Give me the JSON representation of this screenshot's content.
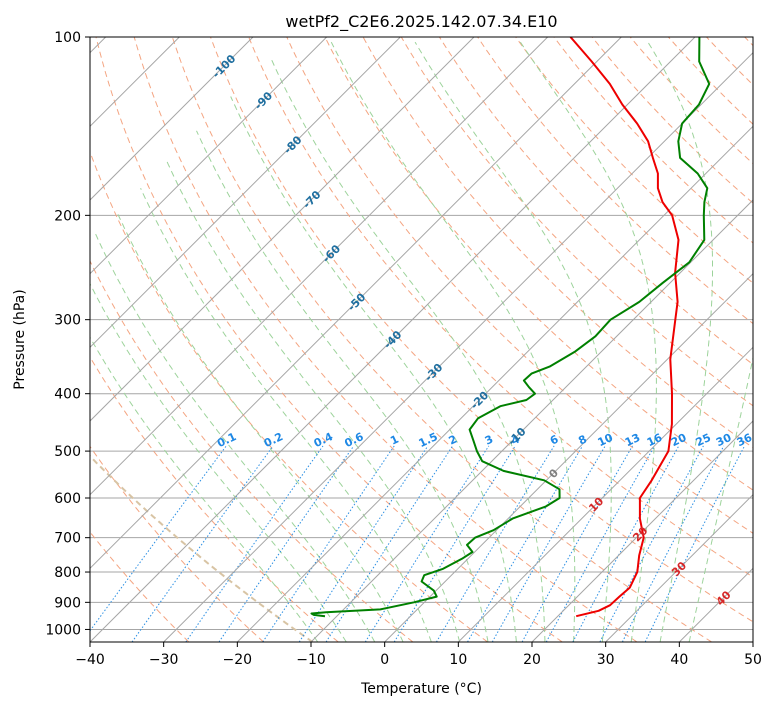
{
  "chart_data": {
    "type": "line",
    "title": "wetPf2_C2E6.2025.142.07.34.E10",
    "xlabel": "Temperature (°C)",
    "ylabel": "Pressure (hPa)",
    "x_range": [
      -40,
      50
    ],
    "p_range": [
      1050,
      100
    ],
    "log_pressure_axis": true,
    "skew": "skew-T log-P diagram",
    "grid": true,
    "x_ticks": [
      -40,
      -30,
      -20,
      -10,
      0,
      10,
      20,
      30,
      40,
      50
    ],
    "x_tick_labels": [
      "−40",
      "−30",
      "−20",
      "−10",
      "0",
      "10",
      "20",
      "30",
      "40",
      "50"
    ],
    "p_ticks": [
      100,
      200,
      300,
      400,
      500,
      600,
      700,
      800,
      900,
      1000
    ],
    "p_tick_labels": [
      "100",
      "200",
      "300",
      "400",
      "500",
      "600",
      "700",
      "800",
      "900",
      "1000"
    ],
    "isotherm_labels": {
      "color": "#1f6fa0",
      "items": [
        {
          "text": "-100",
          "p": 112
        },
        {
          "text": "-90",
          "p": 128
        },
        {
          "text": "-80",
          "p": 152
        },
        {
          "text": "-70",
          "p": 188
        },
        {
          "text": "-60",
          "p": 232
        },
        {
          "text": "-50",
          "p": 280
        },
        {
          "text": "-40",
          "p": 324
        },
        {
          "text": "-30",
          "p": 368
        },
        {
          "text": "-20",
          "p": 410
        },
        {
          "text": "-10",
          "p": 472
        },
        {
          "text": "0",
          "p": 545,
          "color": "#7f7f7f"
        },
        {
          "text": "10",
          "p": 615,
          "color": "#d62728"
        },
        {
          "text": "20",
          "p": 690,
          "color": "#d62728"
        },
        {
          "text": "30",
          "p": 790,
          "color": "#d62728"
        },
        {
          "text": "40",
          "p": 885,
          "color": "#d62728"
        }
      ]
    },
    "mixing_ratio_labels": {
      "color": "#1e88e5",
      "p": 485,
      "items": [
        "0.1",
        "0.2",
        "0.4",
        "0.6",
        "1",
        "1.5",
        "2",
        "3",
        "4",
        "6",
        "8",
        "10",
        "13",
        "16",
        "20",
        "25",
        "30",
        "36"
      ]
    },
    "series": [
      {
        "name": "",
        "color": "#ee0000",
        "points": [
          {
            "p": 950,
            "t": 22.5
          },
          {
            "p": 930,
            "t": 24.8
          },
          {
            "p": 910,
            "t": 25.6
          },
          {
            "p": 880,
            "t": 25.7
          },
          {
            "p": 850,
            "t": 25.9
          },
          {
            "p": 800,
            "t": 24.8
          },
          {
            "p": 750,
            "t": 22.8
          },
          {
            "p": 700,
            "t": 21.0
          },
          {
            "p": 650,
            "t": 17.9
          },
          {
            "p": 600,
            "t": 15.1
          },
          {
            "p": 560,
            "t": 14.3
          },
          {
            "p": 500,
            "t": 12.6
          },
          {
            "p": 450,
            "t": 9.4
          },
          {
            "p": 400,
            "t": 5.3
          },
          {
            "p": 350,
            "t": 0.4
          },
          {
            "p": 300,
            "t": -4.3
          },
          {
            "p": 280,
            "t": -6.4
          },
          {
            "p": 250,
            "t": -10.7
          },
          {
            "p": 220,
            "t": -14.7
          },
          {
            "p": 200,
            "t": -18.9
          },
          {
            "p": 190,
            "t": -22.0
          },
          {
            "p": 180,
            "t": -24.5
          },
          {
            "p": 170,
            "t": -26.5
          },
          {
            "p": 160,
            "t": -29.3
          },
          {
            "p": 150,
            "t": -32.2
          },
          {
            "p": 140,
            "t": -36.1
          },
          {
            "p": 130,
            "t": -40.7
          },
          {
            "p": 120,
            "t": -45.2
          },
          {
            "p": 110,
            "t": -50.7
          },
          {
            "p": 100,
            "t": -56.9
          }
        ]
      },
      {
        "name": "",
        "color": "#008000",
        "points": [
          {
            "p": 950,
            "t": -11.6
          },
          {
            "p": 945,
            "t": -13.3
          },
          {
            "p": 940,
            "t": -13.8
          },
          {
            "p": 935,
            "t": -12.0
          },
          {
            "p": 925,
            "t": -5.0
          },
          {
            "p": 900,
            "t": -1.4
          },
          {
            "p": 880,
            "t": 0.9
          },
          {
            "p": 860,
            "t": -0.3
          },
          {
            "p": 830,
            "t": -3.2
          },
          {
            "p": 810,
            "t": -3.7
          },
          {
            "p": 790,
            "t": -2.0
          },
          {
            "p": 760,
            "t": -0.8
          },
          {
            "p": 740,
            "t": -0.3
          },
          {
            "p": 720,
            "t": -2.0
          },
          {
            "p": 700,
            "t": -1.9
          },
          {
            "p": 680,
            "t": -0.4
          },
          {
            "p": 650,
            "t": 0.6
          },
          {
            "p": 620,
            "t": 3.5
          },
          {
            "p": 600,
            "t": 4.2
          },
          {
            "p": 580,
            "t": 3.0
          },
          {
            "p": 560,
            "t": -0.3
          },
          {
            "p": 540,
            "t": -7.1
          },
          {
            "p": 520,
            "t": -11.3
          },
          {
            "p": 500,
            "t": -13.4
          },
          {
            "p": 480,
            "t": -15.3
          },
          {
            "p": 460,
            "t": -17.3
          },
          {
            "p": 440,
            "t": -17.7
          },
          {
            "p": 420,
            "t": -16.3
          },
          {
            "p": 410,
            "t": -13.6
          },
          {
            "p": 400,
            "t": -13.3
          },
          {
            "p": 390,
            "t": -15.0
          },
          {
            "p": 380,
            "t": -16.6
          },
          {
            "p": 370,
            "t": -16.5
          },
          {
            "p": 360,
            "t": -15.0
          },
          {
            "p": 340,
            "t": -13.6
          },
          {
            "p": 320,
            "t": -12.9
          },
          {
            "p": 300,
            "t": -13.1
          },
          {
            "p": 280,
            "t": -11.6
          },
          {
            "p": 260,
            "t": -11.0
          },
          {
            "p": 240,
            "t": -10.2
          },
          {
            "p": 220,
            "t": -11.2
          },
          {
            "p": 200,
            "t": -14.6
          },
          {
            "p": 190,
            "t": -16.3
          },
          {
            "p": 180,
            "t": -17.8
          },
          {
            "p": 170,
            "t": -21.1
          },
          {
            "p": 160,
            "t": -25.6
          },
          {
            "p": 150,
            "t": -28.1
          },
          {
            "p": 140,
            "t": -30.0
          },
          {
            "p": 130,
            "t": -30.3
          },
          {
            "p": 120,
            "t": -31.7
          },
          {
            "p": 110,
            "t": -36.1
          },
          {
            "p": 100,
            "t": -39.4
          }
        ]
      }
    ],
    "background_line_colors": {
      "isotherm": "#a6a6a6",
      "dry_adiabat": "#f4a582",
      "moist_adiabat": "#9dd39b",
      "mixing_ratio": "#2b8fe3",
      "freezing": "#d8c4a4"
    }
  }
}
